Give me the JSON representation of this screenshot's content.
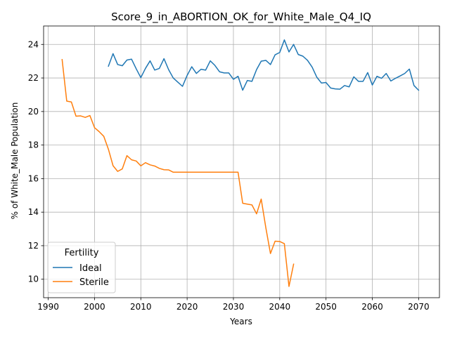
{
  "chart_data": {
    "type": "line",
    "title": "Score_9_in_ABORTION_OK_for_White_Male_Q4_IQ",
    "xlabel": "Years",
    "ylabel": "% of White_Male Population",
    "xlim": [
      1989,
      2074.5
    ],
    "ylim": [
      8.9,
      25.1
    ],
    "xticks": [
      1990,
      2000,
      2010,
      2020,
      2030,
      2040,
      2050,
      2060,
      2070
    ],
    "yticks": [
      10,
      12,
      14,
      16,
      18,
      20,
      22,
      24
    ],
    "grid": true,
    "legend": {
      "title": "Fertility",
      "position": "lower-left"
    },
    "series": [
      {
        "name": "Ideal",
        "color": "#1f77b4",
        "x": [
          2003,
          2004,
          2005,
          2006,
          2007,
          2008,
          2009,
          2010,
          2011,
          2012,
          2013,
          2014,
          2015,
          2016,
          2017,
          2018,
          2019,
          2020,
          2021,
          2022,
          2023,
          2024,
          2025,
          2026,
          2027,
          2028,
          2029,
          2030,
          2031,
          2032,
          2033,
          2034,
          2035,
          2036,
          2037,
          2038,
          2039,
          2040,
          2041,
          2042,
          2043,
          2044,
          2045,
          2046,
          2047,
          2048,
          2049,
          2050,
          2051,
          2052,
          2053,
          2054,
          2055,
          2056,
          2057,
          2058,
          2059,
          2060,
          2061,
          2062,
          2063,
          2064,
          2065,
          2066,
          2067,
          2068,
          2069,
          2070
        ],
        "y": [
          22.7,
          23.45,
          22.8,
          22.73,
          23.07,
          23.12,
          22.55,
          22.02,
          22.57,
          23.02,
          22.47,
          22.57,
          23.15,
          22.5,
          22.0,
          21.75,
          21.5,
          22.15,
          22.67,
          22.27,
          22.52,
          22.47,
          23.02,
          22.75,
          22.37,
          22.3,
          22.3,
          21.92,
          22.1,
          21.27,
          21.85,
          21.8,
          22.5,
          23.0,
          23.05,
          22.8,
          23.38,
          23.52,
          24.27,
          23.55,
          24.0,
          23.4,
          23.3,
          23.05,
          22.65,
          22.05,
          21.7,
          21.73,
          21.4,
          21.35,
          21.33,
          21.55,
          21.47,
          22.07,
          21.8,
          21.8,
          22.32,
          21.58,
          22.1,
          21.98,
          22.27,
          21.82,
          21.98,
          22.12,
          22.27,
          22.53,
          21.55,
          21.27
        ]
      },
      {
        "name": "Sterile",
        "color": "#ff7f0e",
        "x": [
          1993,
          1994,
          1995,
          1996,
          1997,
          1998,
          1999,
          2000,
          2001,
          2002,
          2003,
          2004,
          2005,
          2006,
          2007,
          2008,
          2009,
          2010,
          2011,
          2012,
          2013,
          2014,
          2015,
          2016,
          2017,
          2018,
          2019,
          2020,
          2021,
          2022,
          2023,
          2024,
          2025,
          2026,
          2027,
          2028,
          2029,
          2030,
          2031,
          2032,
          2033,
          2034,
          2035,
          2036,
          2037,
          2038,
          2039,
          2040,
          2041,
          2042,
          2043
        ],
        "y": [
          23.1,
          20.62,
          20.57,
          19.72,
          19.74,
          19.65,
          19.76,
          19.04,
          18.8,
          18.52,
          17.75,
          16.77,
          16.43,
          16.58,
          17.37,
          17.12,
          17.05,
          16.76,
          16.95,
          16.82,
          16.75,
          16.61,
          16.53,
          16.52,
          16.38,
          16.38,
          16.38,
          16.38,
          16.38,
          16.38,
          16.38,
          16.38,
          16.38,
          16.38,
          16.38,
          16.38,
          16.38,
          16.38,
          16.38,
          14.53,
          14.48,
          14.43,
          13.9,
          14.78,
          13.07,
          11.53,
          12.27,
          12.25,
          12.12,
          9.57,
          10.9
        ]
      }
    ]
  }
}
